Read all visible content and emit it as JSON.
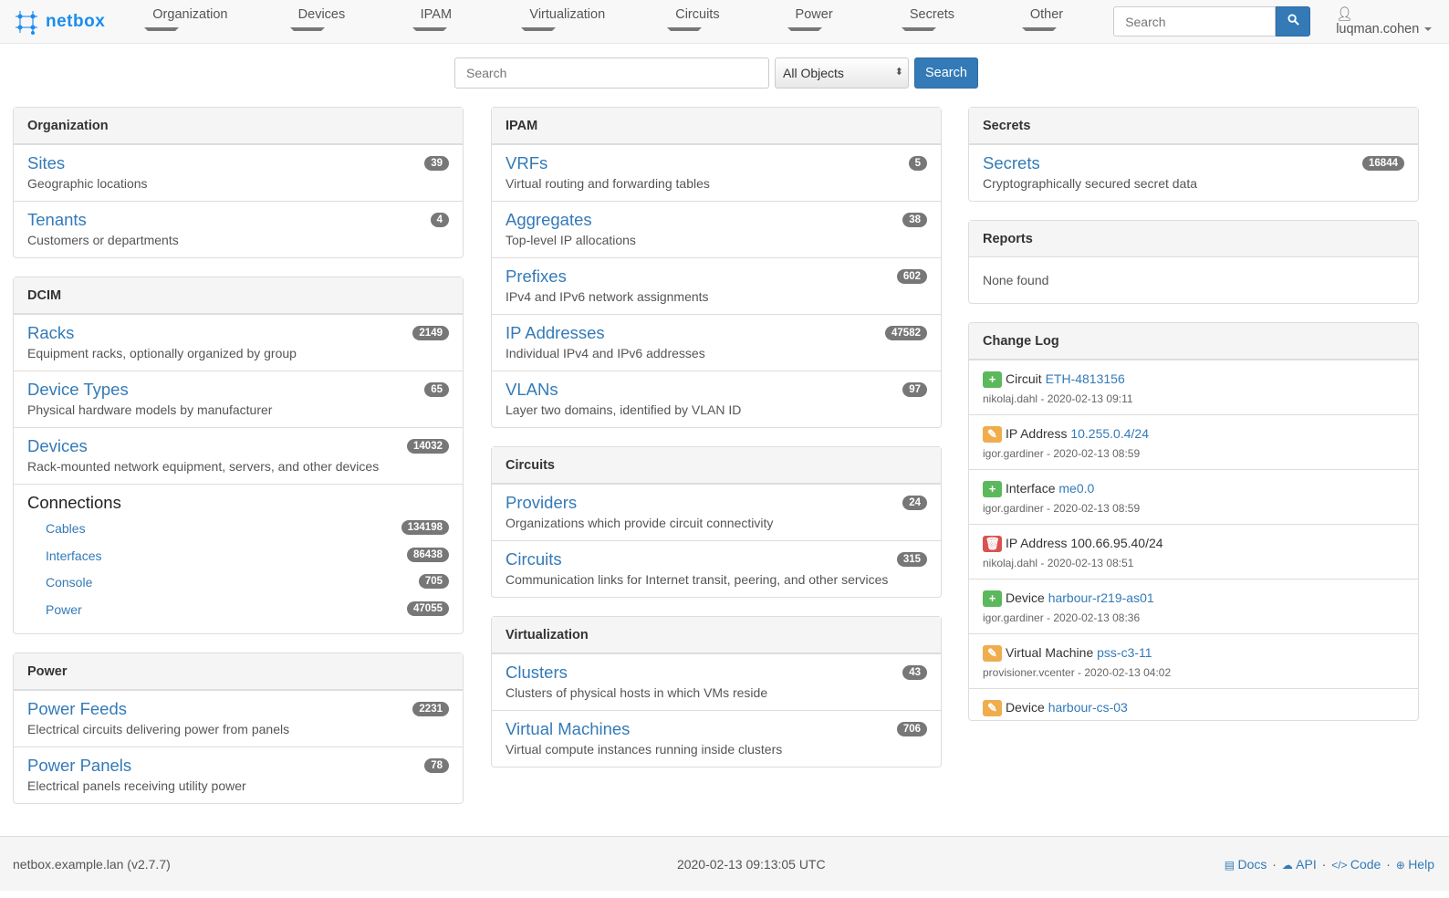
{
  "brand": "netbox",
  "nav": [
    {
      "label": "Organization"
    },
    {
      "label": "Devices"
    },
    {
      "label": "IPAM"
    },
    {
      "label": "Virtualization"
    },
    {
      "label": "Circuits"
    },
    {
      "label": "Power"
    },
    {
      "label": "Secrets"
    },
    {
      "label": "Other"
    }
  ],
  "nav_search": {
    "placeholder": "Search"
  },
  "user": "luqman.cohen",
  "search": {
    "placeholder": "Search",
    "scope": "All Objects",
    "button": "Search"
  },
  "columns": [
    [
      {
        "title": "Organization",
        "items": [
          {
            "title": "Sites",
            "desc": "Geographic locations",
            "count": "39"
          },
          {
            "title": "Tenants",
            "desc": "Customers or departments",
            "count": "4"
          }
        ]
      },
      {
        "title": "DCIM",
        "items": [
          {
            "title": "Racks",
            "desc": "Equipment racks, optionally organized by group",
            "count": "2149"
          },
          {
            "title": "Device Types",
            "desc": "Physical hardware models by manufacturer",
            "count": "65"
          },
          {
            "title": "Devices",
            "desc": "Rack-mounted network equipment, servers, and other devices",
            "count": "14032"
          }
        ],
        "connections": {
          "title": "Connections",
          "items": [
            {
              "label": "Cables",
              "count": "134198"
            },
            {
              "label": "Interfaces",
              "count": "86438"
            },
            {
              "label": "Console",
              "count": "705"
            },
            {
              "label": "Power",
              "count": "47055"
            }
          ]
        }
      },
      {
        "title": "Power",
        "items": [
          {
            "title": "Power Feeds",
            "desc": "Electrical circuits delivering power from panels",
            "count": "2231"
          },
          {
            "title": "Power Panels",
            "desc": "Electrical panels receiving utility power",
            "count": "78"
          }
        ]
      }
    ],
    [
      {
        "title": "IPAM",
        "items": [
          {
            "title": "VRFs",
            "desc": "Virtual routing and forwarding tables",
            "count": "5"
          },
          {
            "title": "Aggregates",
            "desc": "Top-level IP allocations",
            "count": "38"
          },
          {
            "title": "Prefixes",
            "desc": "IPv4 and IPv6 network assignments",
            "count": "602"
          },
          {
            "title": "IP Addresses",
            "desc": "Individual IPv4 and IPv6 addresses",
            "count": "47582"
          },
          {
            "title": "VLANs",
            "desc": "Layer two domains, identified by VLAN ID",
            "count": "97"
          }
        ]
      },
      {
        "title": "Circuits",
        "items": [
          {
            "title": "Providers",
            "desc": "Organizations which provide circuit connectivity",
            "count": "24"
          },
          {
            "title": "Circuits",
            "desc": "Communication links for Internet transit, peering, and other services",
            "count": "315"
          }
        ]
      },
      {
        "title": "Virtualization",
        "items": [
          {
            "title": "Clusters",
            "desc": "Clusters of physical hosts in which VMs reside",
            "count": "43"
          },
          {
            "title": "Virtual Machines",
            "desc": "Virtual compute instances running inside clusters",
            "count": "706"
          }
        ]
      }
    ],
    [
      {
        "title": "Secrets",
        "items": [
          {
            "title": "Secrets",
            "desc": "Cryptographically secured secret data",
            "count": "16844"
          }
        ]
      },
      {
        "title": "Reports",
        "none": "None found"
      },
      {
        "title": "Change Log",
        "changelog": [
          {
            "action": "create",
            "type": "Circuit",
            "object": "ETH-4813156",
            "linked": true,
            "meta": "nikolaj.dahl - 2020-02-13 09:11"
          },
          {
            "action": "update",
            "type": "IP Address",
            "object": "10.255.0.4/24",
            "linked": true,
            "meta": "igor.gardiner - 2020-02-13 08:59"
          },
          {
            "action": "create",
            "type": "Interface",
            "object": "me0.0",
            "linked": true,
            "meta": "igor.gardiner - 2020-02-13 08:59"
          },
          {
            "action": "delete",
            "type": "IP Address",
            "object": "100.66.95.40/24",
            "linked": false,
            "meta": "nikolaj.dahl - 2020-02-13 08:51"
          },
          {
            "action": "create",
            "type": "Device",
            "object": "harbour-r219-as01",
            "linked": true,
            "meta": "igor.gardiner - 2020-02-13 08:36"
          },
          {
            "action": "update",
            "type": "Virtual Machine",
            "object": "pss-c3-11",
            "linked": true,
            "meta": "provisioner.vcenter - 2020-02-13 04:02"
          },
          {
            "action": "update",
            "type": "Device",
            "object": "harbour-cs-03",
            "linked": true,
            "meta": ""
          }
        ]
      }
    ]
  ],
  "action_colors": {
    "create": "#5cb85c",
    "update": "#f0ad4e",
    "delete": "#d9534f"
  },
  "footer": {
    "host": "netbox.example.lan (v2.7.7)",
    "time": "2020-02-13 09:13:05 UTC",
    "links": [
      {
        "icon": "book-icon",
        "label": "Docs"
      },
      {
        "icon": "cloud-icon",
        "label": "API"
      },
      {
        "icon": "code-icon",
        "label": "Code"
      },
      {
        "icon": "life-ring-icon",
        "label": "Help"
      }
    ]
  }
}
